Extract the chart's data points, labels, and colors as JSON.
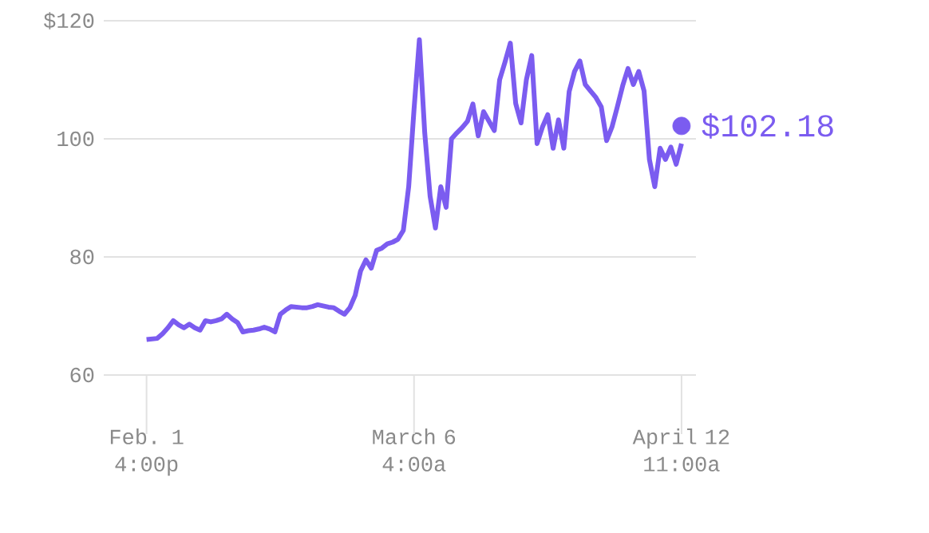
{
  "chart_data": {
    "type": "line",
    "categories": [
      "Feb. 1 4:00p",
      null,
      null,
      null,
      null,
      null,
      null,
      null,
      null,
      null,
      null,
      null,
      null,
      null,
      null,
      null,
      null,
      null,
      null,
      null,
      null,
      null,
      null,
      null,
      null,
      null,
      null,
      null,
      null,
      null,
      null,
      null,
      null,
      null,
      null,
      null,
      null,
      null,
      null,
      null,
      null,
      null,
      null,
      null,
      null,
      null,
      null,
      null,
      null,
      null,
      "March 6 4:00a",
      null,
      null,
      null,
      null,
      null,
      null,
      null,
      null,
      null,
      null,
      null,
      null,
      null,
      null,
      null,
      null,
      null,
      null,
      null,
      null,
      null,
      null,
      null,
      null,
      null,
      null,
      null,
      null,
      null,
      null,
      null,
      null,
      null,
      null,
      null,
      null,
      null,
      null,
      null,
      null,
      null,
      null,
      null,
      null,
      null,
      null,
      null,
      null,
      null,
      "April 12 11:00a"
    ],
    "series": [
      {
        "color": "#7b5cf0",
        "values": [
          66,
          66.1,
          66.2,
          67,
          68,
          69.2,
          68.5,
          68,
          68.6,
          68,
          67.6,
          69.2,
          69,
          69.2,
          69.5,
          70.3,
          69.5,
          68.9,
          67.3,
          67.5,
          67.6,
          67.8,
          68.1,
          67.8,
          67.3,
          70.3,
          71,
          71.6,
          71.5,
          71.4,
          71.4,
          71.6,
          71.9,
          71.7,
          71.5,
          71.4,
          70.8,
          70.3,
          71.4,
          73.5,
          77.6,
          79.5,
          78.1,
          81.1,
          81.5,
          82.2,
          82.5,
          83,
          84.5,
          91.9,
          105,
          116.8,
          101,
          90.3,
          84.9,
          91.9,
          88.4,
          100,
          101,
          101.9,
          103,
          105.9,
          100.5,
          104.6,
          103,
          101.4,
          110,
          113,
          116.2,
          106,
          102.7,
          110,
          114.1,
          99.2,
          102,
          104.1,
          98.4,
          103.2,
          98.4,
          108,
          111.4,
          113.2,
          109.2,
          108.1,
          107,
          105.4,
          99.7,
          102,
          105.4,
          109,
          111.9,
          109.2,
          111.4,
          108.1,
          96.5,
          91.9,
          98.4,
          96.5,
          98.6,
          95.7,
          99.2
        ]
      },
      {
        "type": "scatter",
        "color": "#7b5cf0",
        "marker": "circle",
        "x": [
          "April 12 11:00a"
        ],
        "values": [
          102.18
        ],
        "value_labels": [
          "$102.18"
        ]
      }
    ],
    "ylim": [
      60,
      120
    ],
    "yticks": [
      {
        "value": 60,
        "label": "60"
      },
      {
        "value": 80,
        "label": "80"
      },
      {
        "value": 100,
        "label": "100"
      },
      {
        "value": 120,
        "label": "$120"
      }
    ],
    "grid": "y",
    "line_style": "solid",
    "marker": "none"
  }
}
